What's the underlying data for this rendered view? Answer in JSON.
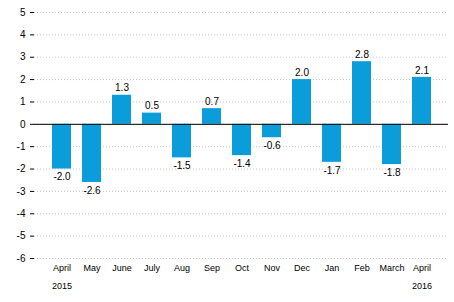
{
  "chart_data": {
    "type": "bar",
    "categories": [
      "April",
      "May",
      "June",
      "July",
      "Aug",
      "Sep",
      "Oct",
      "Nov",
      "Dec",
      "Jan",
      "Feb",
      "March",
      "April"
    ],
    "x_group_labels": [
      {
        "index": 0,
        "label": "2015"
      },
      {
        "index": 12,
        "label": "2016"
      }
    ],
    "values": [
      -2.0,
      -2.6,
      1.3,
      0.5,
      -1.5,
      0.7,
      -1.4,
      -0.6,
      2.0,
      -1.7,
      2.8,
      -1.8,
      2.1
    ],
    "value_labels": [
      "-2.0",
      "-2.6",
      "1.3",
      "0.5",
      "-1.5",
      "0.7",
      "-1.4",
      "-0.6",
      "2.0",
      "-1.7",
      "2.8",
      "-1.8",
      "2.1"
    ],
    "color": "#0a9dda",
    "ylim": [
      -6,
      5
    ],
    "yticks": [
      -6,
      -5,
      -4,
      -3,
      -2,
      -1,
      0,
      1,
      2,
      3,
      4,
      5
    ],
    "grid": true,
    "data_labels": true
  }
}
